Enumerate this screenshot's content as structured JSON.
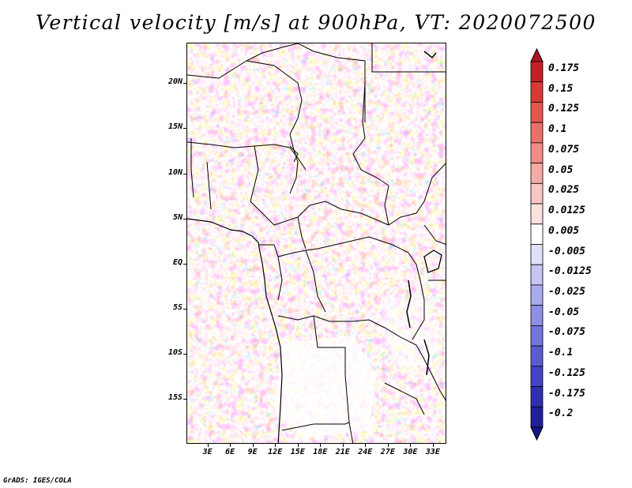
{
  "title": "Vertical velocity [m/s] at 900hPa, VT: 2020072500",
  "footer": "GrADS: IGES/COLA",
  "lat_labels": [
    {
      "text": "20N",
      "lat": 20
    },
    {
      "text": "15N",
      "lat": 15
    },
    {
      "text": "10N",
      "lat": 10
    },
    {
      "text": "5N",
      "lat": 5
    },
    {
      "text": "EQ",
      "lat": 0
    },
    {
      "text": "5S",
      "lat": -5
    },
    {
      "text": "10S",
      "lat": -10
    },
    {
      "text": "15S",
      "lat": -15
    }
  ],
  "lon_labels": [
    {
      "text": "3E",
      "lon": 3
    },
    {
      "text": "6E",
      "lon": 6
    },
    {
      "text": "9E",
      "lon": 9
    },
    {
      "text": "12E",
      "lon": 12
    },
    {
      "text": "15E",
      "lon": 15
    },
    {
      "text": "18E",
      "lon": 18
    },
    {
      "text": "21E",
      "lon": 21
    },
    {
      "text": "24E",
      "lon": 24
    },
    {
      "text": "27E",
      "lon": 27
    },
    {
      "text": "30E",
      "lon": 30
    },
    {
      "text": "33E",
      "lon": 33
    }
  ],
  "map_extent": {
    "lon_min": 0.2,
    "lon_max": 34.8,
    "lat_min": -20.0,
    "lat_max": 24.5
  },
  "colorbar": {
    "labels": [
      "0.175",
      "0.15",
      "0.125",
      "0.1",
      "0.075",
      "0.05",
      "0.025",
      "0.0125",
      "0.005",
      "-0.005",
      "-0.0125",
      "-0.025",
      "-0.05",
      "-0.075",
      "-0.1",
      "-0.125",
      "-0.175",
      "-0.2"
    ],
    "colors": [
      "#c21f26",
      "#d63a33",
      "#e2564e",
      "#ea7069",
      "#ef8c86",
      "#f4aaa6",
      "#f8c6c4",
      "#fbe1e0",
      "#ffffff",
      "#e0e0f8",
      "#c5c5f2",
      "#aaaaee",
      "#8f8fe6",
      "#7575dc",
      "#5c5cd0",
      "#4444c2",
      "#2f2fb0",
      "#20209a"
    ],
    "top_color": "#b0141c",
    "bottom_color": "#16168a"
  }
}
